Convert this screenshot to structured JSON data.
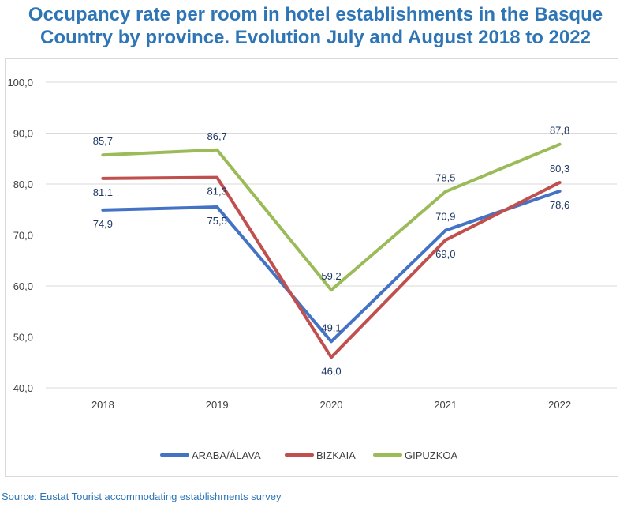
{
  "header": {
    "title_line1": "Occupancy rate per room in hotel establishments in the Basque",
    "title_line2": "Country by province. Evolution July and August 2018 to 2022"
  },
  "footer": {
    "source": "Source: Eustat Tourist accommodating establishments survey"
  },
  "colors": {
    "title": "#2E75B6",
    "grid": "#d9d9d9",
    "axis_text": "#404040",
    "label_text": "#1F3864"
  },
  "chart_data": {
    "type": "line",
    "title": "Occupancy rate per room in hotel establishments in the Basque Country by province. Evolution July and August 2018 to 2022",
    "categories": [
      "2018",
      "2019",
      "2020",
      "2021",
      "2022"
    ],
    "ylim": [
      40,
      100
    ],
    "yticks": [
      "40,0",
      "50,0",
      "60,0",
      "70,0",
      "80,0",
      "90,0",
      "100,0"
    ],
    "grid": true,
    "legend_position": "bottom",
    "series": [
      {
        "name": "ARABA/ÁLAVA",
        "color": "#4472C4",
        "values": [
          74.9,
          75.5,
          49.1,
          70.9,
          78.6
        ],
        "labels": [
          "74,9",
          "75,5",
          "49,1",
          "70,9",
          "78,6"
        ],
        "label_pos": [
          "below",
          "below",
          "above",
          "above",
          "below"
        ]
      },
      {
        "name": "BIZKAIA",
        "color": "#C0504D",
        "values": [
          81.1,
          81.3,
          46.0,
          69.0,
          80.3
        ],
        "labels": [
          "81,1",
          "81,3",
          "46,0",
          "69,0",
          "80,3"
        ],
        "label_pos": [
          "below",
          "below",
          "below",
          "below",
          "above"
        ]
      },
      {
        "name": "GIPUZKOA",
        "color": "#9BBB59",
        "values": [
          85.7,
          86.7,
          59.2,
          78.5,
          87.8
        ],
        "labels": [
          "85,7",
          "86,7",
          "59,2",
          "78,5",
          "87,8"
        ],
        "label_pos": [
          "above",
          "above",
          "above",
          "above",
          "above"
        ]
      }
    ]
  }
}
